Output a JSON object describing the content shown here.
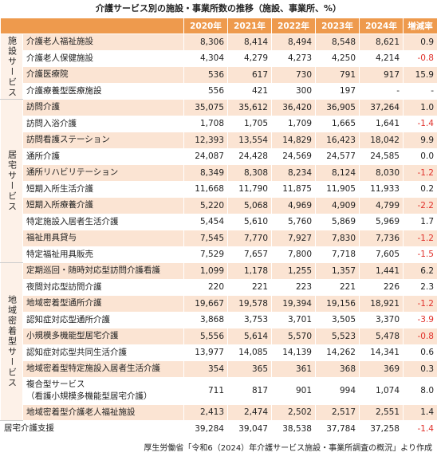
{
  "title": "介護サービス別の施設・事業所数の推移（施設、事業所、%）",
  "header": [
    "2020年",
    "2021年",
    "2022年",
    "2023年",
    "2024年",
    "増減率"
  ],
  "groups": [
    {
      "label": "施設サービス",
      "rows": [
        {
          "name": "介護老人福祉施設",
          "cells": [
            "8,306",
            "8,414",
            "8,494",
            "8,548",
            "8,621",
            "0.9"
          ]
        },
        {
          "name": "介護老人保健施設",
          "cells": [
            "4,304",
            "4,279",
            "4,273",
            "4,250",
            "4,214",
            "-0.8"
          ]
        },
        {
          "name": "介護医療院",
          "cells": [
            "536",
            "617",
            "730",
            "791",
            "917",
            "15.9"
          ]
        },
        {
          "name": "介護療養型医療施設",
          "cells": [
            "556",
            "421",
            "300",
            "197",
            "-",
            "-"
          ]
        }
      ]
    },
    {
      "label": "居宅サービス",
      "rows": [
        {
          "name": "訪問介護",
          "cells": [
            "35,075",
            "35,612",
            "36,420",
            "36,905",
            "37,264",
            "1.0"
          ]
        },
        {
          "name": "訪問入浴介護",
          "cells": [
            "1,708",
            "1,705",
            "1,709",
            "1,665",
            "1,641",
            "-1.4"
          ]
        },
        {
          "name": "訪問看護ステーション",
          "cells": [
            "12,393",
            "13,554",
            "14,829",
            "16,423",
            "18,042",
            "9.9"
          ]
        },
        {
          "name": "通所介護",
          "cells": [
            "24,087",
            "24,428",
            "24,569",
            "24,577",
            "24,585",
            "0.0"
          ]
        },
        {
          "name": "通所リハビリテーション",
          "cells": [
            "8,349",
            "8,308",
            "8,234",
            "8,124",
            "8,030",
            "-1.2"
          ]
        },
        {
          "name": "短期入所生活介護",
          "cells": [
            "11,668",
            "11,790",
            "11,875",
            "11,905",
            "11,933",
            "0.2"
          ]
        },
        {
          "name": "短期入所療養介護",
          "cells": [
            "5,220",
            "5,068",
            "4,969",
            "4,909",
            "4,799",
            "-2.2"
          ]
        },
        {
          "name": "特定施設入居者生活介護",
          "cells": [
            "5,454",
            "5,610",
            "5,760",
            "5,869",
            "5,969",
            "1.7"
          ]
        },
        {
          "name": "福祉用具貸与",
          "cells": [
            "7,545",
            "7,770",
            "7,927",
            "7,830",
            "7,736",
            "-1.2"
          ]
        },
        {
          "name": "特定福祉用具販売",
          "cells": [
            "7,529",
            "7,657",
            "7,800",
            "7,718",
            "7,605",
            "-1.5"
          ]
        }
      ]
    },
    {
      "label": "地域密着型サービス",
      "rows": [
        {
          "name": "定期巡回・随時対応型訪問介護看護",
          "cells": [
            "1,099",
            "1,178",
            "1,255",
            "1,357",
            "1,441",
            "6.2"
          ]
        },
        {
          "name": "夜間対応型訪問介護",
          "cells": [
            "220",
            "221",
            "223",
            "221",
            "226",
            "2.3"
          ]
        },
        {
          "name": "地域密着型通所介護",
          "cells": [
            "19,667",
            "19,578",
            "19,394",
            "19,156",
            "18,921",
            "-1.2"
          ]
        },
        {
          "name": "認知症対応型通所介護",
          "cells": [
            "3,868",
            "3,753",
            "3,701",
            "3,505",
            "3,370",
            "-3.9"
          ]
        },
        {
          "name": "小規模多機能型居宅介護",
          "cells": [
            "5,556",
            "5,614",
            "5,570",
            "5,523",
            "5,478",
            "-0.8"
          ]
        },
        {
          "name": "認知症対応型共同生活介護",
          "cells": [
            "13,977",
            "14,085",
            "14,139",
            "14,262",
            "14,341",
            "0.6"
          ]
        },
        {
          "name": "地域密着型特定施設入居者生活介護",
          "cells": [
            "354",
            "365",
            "361",
            "368",
            "369",
            "0.3"
          ]
        },
        {
          "name": "複合型サービス\n（看護小規模多機能型居宅介護）",
          "cells": [
            "711",
            "817",
            "901",
            "994",
            "1,074",
            "8.0"
          ]
        },
        {
          "name": "地域密着型介護老人福祉施設",
          "cells": [
            "2,413",
            "2,474",
            "2,502",
            "2,517",
            "2,551",
            "1.4"
          ]
        }
      ]
    }
  ],
  "total": {
    "name": "居宅介護支援",
    "cells": [
      "39,284",
      "39,047",
      "38,538",
      "37,784",
      "37,258",
      "-1.4"
    ]
  },
  "source": "厚生労働省「令和6（2024）年介護サービス施設・事業所調査の概況」より作成"
}
